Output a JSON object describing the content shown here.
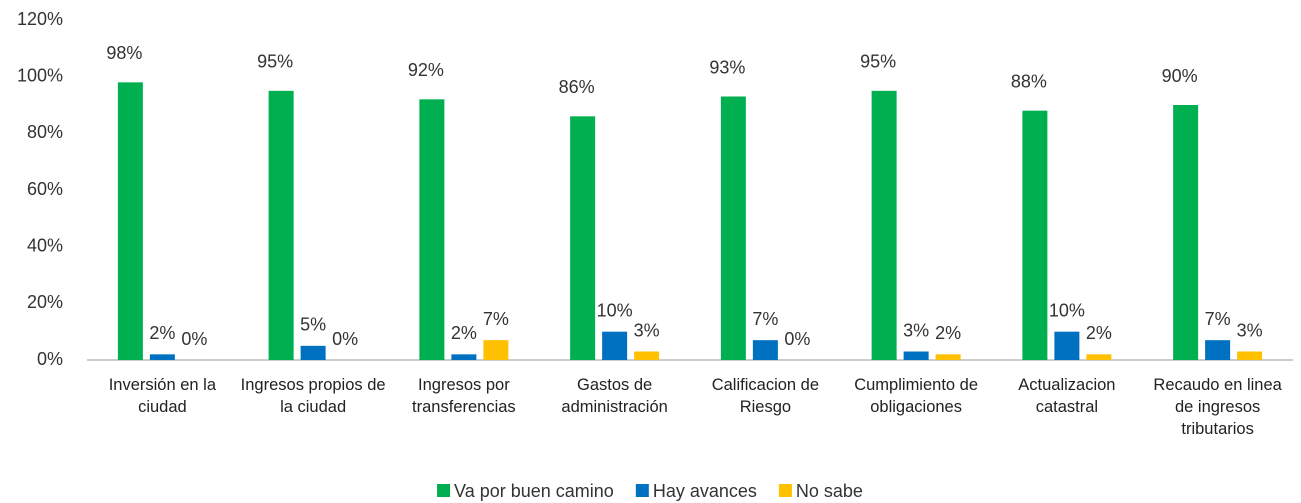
{
  "chart_data": {
    "type": "bar",
    "categories": [
      "Inversión en la ciudad",
      "Ingresos propios de la ciudad",
      "Ingresos por transferencias",
      "Gastos de administración",
      "Calificacion de Riesgo",
      "Cumplimiento de obligaciones",
      "Actualizacion catastral",
      "Recaudo en linea de ingresos tributarios"
    ],
    "series": [
      {
        "name": "Va por buen camino",
        "color": "#00b050",
        "values": [
          98,
          95,
          92,
          86,
          93,
          95,
          88,
          90
        ],
        "value_labels": [
          "98%",
          "95%",
          "92%",
          "86%",
          "93%",
          "95%",
          "88%",
          "90%"
        ]
      },
      {
        "name": "Hay avances",
        "color": "#0070c0",
        "values": [
          2,
          5,
          2,
          10,
          7,
          3,
          10,
          7
        ],
        "value_labels": [
          "2%",
          "5%",
          "2%",
          "10%",
          "7%",
          "3%",
          "10%",
          "7%"
        ]
      },
      {
        "name": "No sabe",
        "color": "#ffc000",
        "values": [
          0,
          0,
          7,
          3,
          0,
          2,
          2,
          3
        ],
        "value_labels": [
          "0%",
          "0%",
          "7%",
          "3%",
          "0%",
          "2%",
          "2%",
          "3%"
        ]
      }
    ],
    "ylim": [
      0,
      120
    ],
    "yticks": [
      {
        "value": 0,
        "label": "0%"
      },
      {
        "value": 20,
        "label": "20%"
      },
      {
        "value": 40,
        "label": "40%"
      },
      {
        "value": 60,
        "label": "60%"
      },
      {
        "value": 80,
        "label": "80%"
      },
      {
        "value": 100,
        "label": "100%"
      },
      {
        "value": 120,
        "label": "120%"
      }
    ],
    "legend": "bottom",
    "grid": false
  }
}
